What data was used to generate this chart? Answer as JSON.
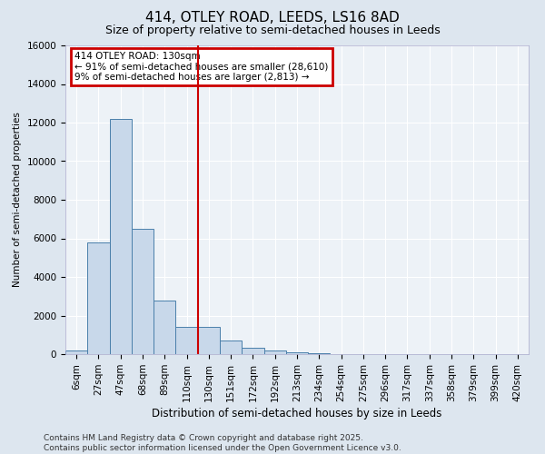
{
  "title": "414, OTLEY ROAD, LEEDS, LS16 8AD",
  "subtitle": "Size of property relative to semi-detached houses in Leeds",
  "xlabel": "Distribution of semi-detached houses by size in Leeds",
  "ylabel": "Number of semi-detached properties",
  "categories": [
    "6sqm",
    "27sqm",
    "47sqm",
    "68sqm",
    "89sqm",
    "110sqm",
    "130sqm",
    "151sqm",
    "172sqm",
    "192sqm",
    "213sqm",
    "234sqm",
    "254sqm",
    "275sqm",
    "296sqm",
    "317sqm",
    "337sqm",
    "358sqm",
    "379sqm",
    "399sqm",
    "420sqm"
  ],
  "values": [
    200,
    5800,
    12200,
    6500,
    2800,
    1400,
    1400,
    700,
    350,
    170,
    100,
    50,
    20,
    10,
    5,
    3,
    2,
    1,
    0,
    0,
    0
  ],
  "bar_color": "#c8d8ea",
  "bar_edge_color": "#4a7faa",
  "vline_x_index": 6,
  "vline_color": "#cc0000",
  "annotation_title": "414 OTLEY ROAD: 130sqm",
  "annotation_line1": "← 91% of semi-detached houses are smaller (28,610)",
  "annotation_line2": "9% of semi-detached houses are larger (2,813) →",
  "annotation_box_edge_color": "#cc0000",
  "ylim": [
    0,
    16000
  ],
  "yticks": [
    0,
    2000,
    4000,
    6000,
    8000,
    10000,
    12000,
    14000,
    16000
  ],
  "footer_line1": "Contains HM Land Registry data © Crown copyright and database right 2025.",
  "footer_line2": "Contains public sector information licensed under the Open Government Licence v3.0.",
  "bg_color": "#dde6ef",
  "plot_bg_color": "#edf2f7",
  "grid_color": "#ffffff",
  "title_fontsize": 11,
  "subtitle_fontsize": 9,
  "tick_fontsize": 7.5,
  "ylabel_fontsize": 7.5,
  "xlabel_fontsize": 8.5,
  "annotation_fontsize": 7.5,
  "footer_fontsize": 6.5
}
